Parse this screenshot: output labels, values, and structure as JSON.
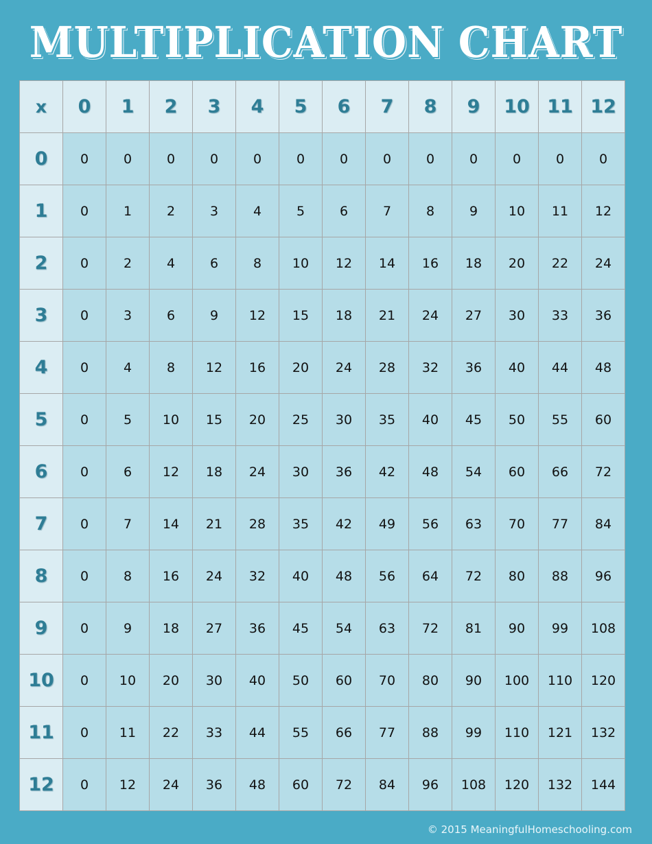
{
  "title": "MULTIPLICATION CHART",
  "corner_label": "x",
  "column_headers": [
    "0",
    "1",
    "2",
    "3",
    "4",
    "5",
    "6",
    "7",
    "8",
    "9",
    "10",
    "11",
    "12"
  ],
  "row_headers": [
    "0",
    "1",
    "2",
    "3",
    "4",
    "5",
    "6",
    "7",
    "8",
    "9",
    "10",
    "11",
    "12"
  ],
  "rows": [
    [
      "0",
      "0",
      "0",
      "0",
      "0",
      "0",
      "0",
      "0",
      "0",
      "0",
      "0",
      "0",
      "0"
    ],
    [
      "0",
      "1",
      "2",
      "3",
      "4",
      "5",
      "6",
      "7",
      "8",
      "9",
      "10",
      "11",
      "12"
    ],
    [
      "0",
      "2",
      "4",
      "6",
      "8",
      "10",
      "12",
      "14",
      "16",
      "18",
      "20",
      "22",
      "24"
    ],
    [
      "0",
      "3",
      "6",
      "9",
      "12",
      "15",
      "18",
      "21",
      "24",
      "27",
      "30",
      "33",
      "36"
    ],
    [
      "0",
      "4",
      "8",
      "12",
      "16",
      "20",
      "24",
      "28",
      "32",
      "36",
      "40",
      "44",
      "48"
    ],
    [
      "0",
      "5",
      "10",
      "15",
      "20",
      "25",
      "30",
      "35",
      "40",
      "45",
      "50",
      "55",
      "60"
    ],
    [
      "0",
      "6",
      "12",
      "18",
      "24",
      "30",
      "36",
      "42",
      "48",
      "54",
      "60",
      "66",
      "72"
    ],
    [
      "0",
      "7",
      "14",
      "21",
      "28",
      "35",
      "42",
      "49",
      "56",
      "63",
      "70",
      "77",
      "84"
    ],
    [
      "0",
      "8",
      "16",
      "24",
      "32",
      "40",
      "48",
      "56",
      "64",
      "72",
      "80",
      "88",
      "96"
    ],
    [
      "0",
      "9",
      "18",
      "27",
      "36",
      "45",
      "54",
      "63",
      "72",
      "81",
      "90",
      "99",
      "108"
    ],
    [
      "0",
      "10",
      "20",
      "30",
      "40",
      "50",
      "60",
      "70",
      "80",
      "90",
      "100",
      "110",
      "120"
    ],
    [
      "0",
      "11",
      "22",
      "33",
      "44",
      "55",
      "66",
      "77",
      "88",
      "99",
      "110",
      "121",
      "132"
    ],
    [
      "0",
      "12",
      "24",
      "36",
      "48",
      "60",
      "72",
      "84",
      "96",
      "108",
      "120",
      "132",
      "144"
    ]
  ],
  "copyright": "© 2015 MeaningfulHomeschooling.com",
  "colors": {
    "background": "#4aabc6",
    "header_cell": "#dbedf3",
    "body_cell": "#b6dde8",
    "header_text": "#2e7d95",
    "border": "#a6a6a6"
  }
}
